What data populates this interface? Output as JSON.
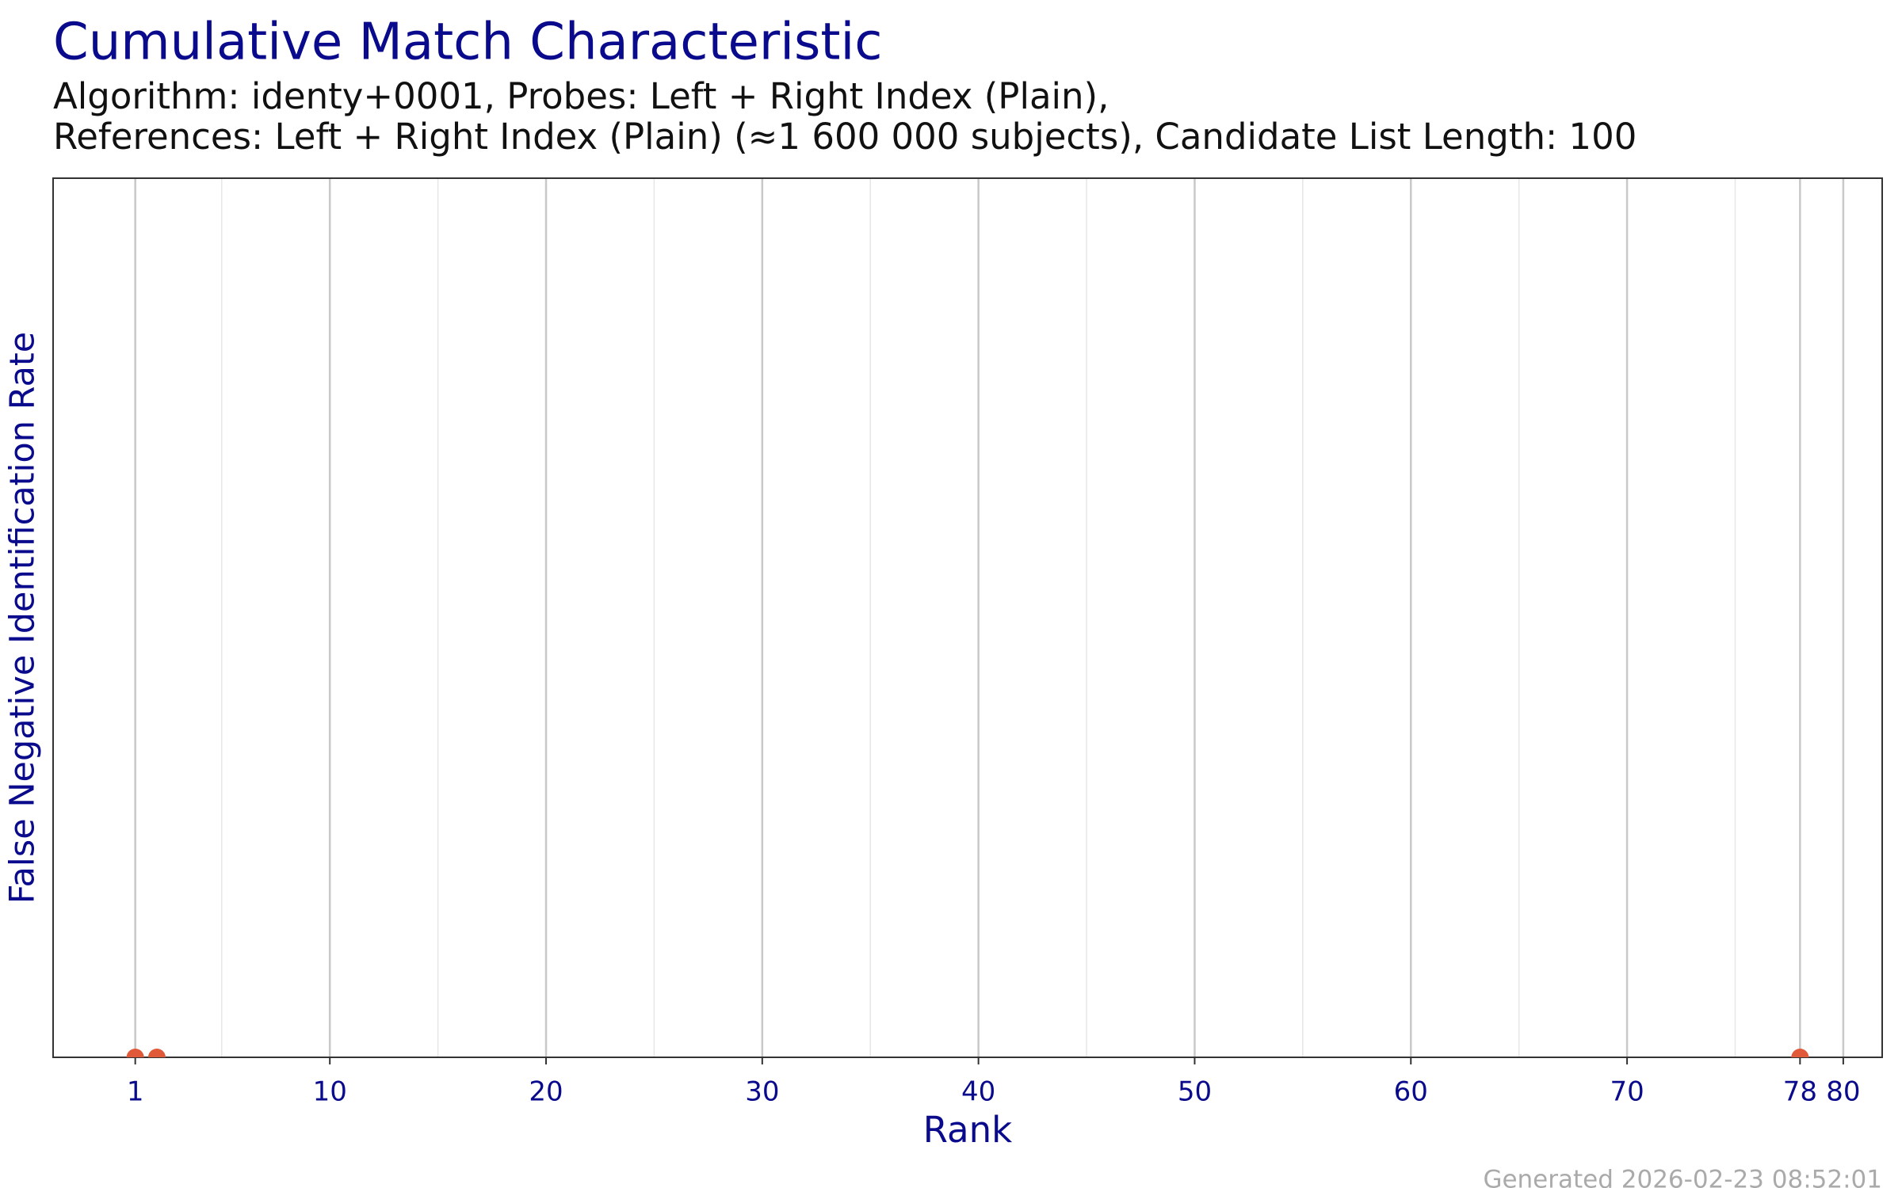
{
  "chart_data": {
    "type": "scatter",
    "title": "Cumulative Match Characteristic",
    "subtitle": [
      "Algorithm: identy+0001, Probes: Left + Right Index (Plain),",
      "References: Left + Right Index (Plain) (≈1 600 000 subjects), Candidate List Length: 100"
    ],
    "x_label": "Rank",
    "y_label": "False Negative Identification Rate",
    "x": [
      1,
      2,
      78
    ],
    "values": [
      0,
      0,
      0
    ],
    "color": "#e05a3a",
    "xlim": [
      -2.8,
      81.8
    ],
    "xticks": [
      1,
      10,
      20,
      30,
      40,
      50,
      60,
      70,
      78,
      80
    ],
    "minor_xticks": [
      5,
      15,
      25,
      35,
      45,
      55,
      65,
      75
    ],
    "ylim": [
      0,
      1
    ],
    "grid": true
  },
  "footer": "Generated 2026-02-23 08:52:01"
}
